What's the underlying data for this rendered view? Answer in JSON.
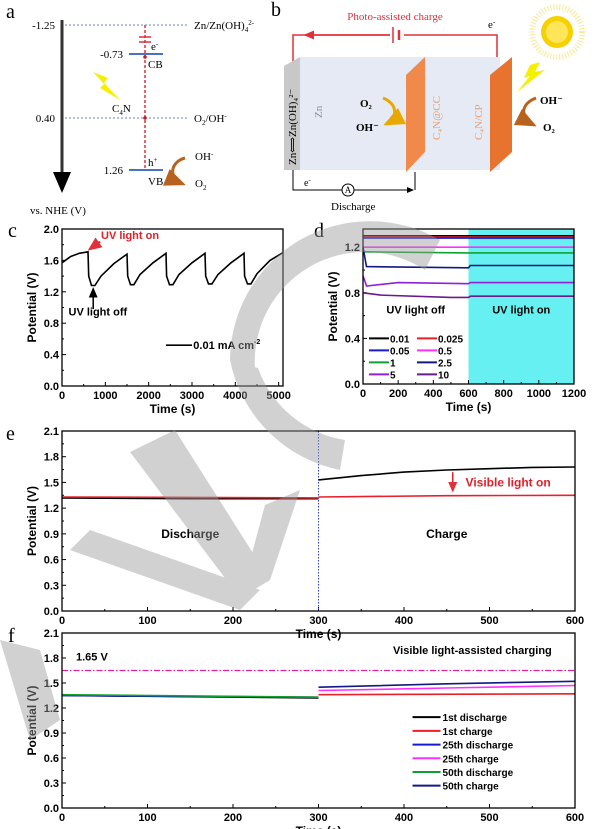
{
  "panel_labels": [
    "a",
    "b",
    "c",
    "d",
    "e",
    "f"
  ],
  "diagrams": {
    "a": {
      "axis_label": "vs. NHE (V)",
      "levels": [
        "-1.25",
        "-0.73",
        "0.40",
        "1.26"
      ],
      "couples": {
        "zn": "Zn/Zn(OH)",
        "zn_sub": "4",
        "zn_sup": "2-",
        "o2": "O",
        "o2_sub": "2",
        "o2_rest": "/OH",
        "o2_sup": "-"
      },
      "band_labels": {
        "cb": "CB",
        "vb": "VB",
        "electron": "e",
        "electron_sup": "-",
        "hole": "h",
        "hole_sup": "+"
      },
      "material": {
        "c": "C",
        "sub": "4",
        "n": "N"
      },
      "products": {
        "oh": "OH",
        "oh_sup": "-",
        "o2": "O",
        "o2_sub": "2"
      },
      "colors": {
        "band": "#4a72c4",
        "dashed": "#e0303a",
        "arrow": "#b8621f",
        "bolt": "#f5f000"
      }
    },
    "b": {
      "title": "Photo-assisted charge",
      "electron": "e",
      "electron_sup": "-",
      "zn_label": "Zn",
      "zn_couple": "Zn⟺Zn(OH)₄²⁻",
      "cathode_cc": "C₄N@CC",
      "cathode_cp": "C₄N/CP",
      "left_reaction": {
        "top": "O₂",
        "bottom": "OH⁻"
      },
      "right_reaction": {
        "top": "OH⁻",
        "bottom": "O₂"
      },
      "ammeter": "A",
      "discharge": "Discharge",
      "colors": {
        "wire_charge": "#e0303a",
        "electrolyte": "#e5eaf5",
        "plate": "#f0894a",
        "plate_dark": "#e8732e",
        "sun": "#f7d000"
      }
    }
  },
  "chart_data": [
    {
      "id": "c",
      "type": "line",
      "xlabel": "Time (s)",
      "ylabel": "Potential (V)",
      "xlim": [
        0,
        5100
      ],
      "ylim": [
        0,
        2.0
      ],
      "xticks": [
        "0",
        "1000",
        "2000",
        "3000",
        "4000",
        "5000"
      ],
      "yticks": [
        "0.0",
        "0.4",
        "0.8",
        "1.2",
        "1.6",
        "2.0"
      ],
      "grid": false,
      "legend": {
        "placement": "lower-right",
        "entries": [
          {
            "label": "0.01 mA cm",
            "sup": "-2",
            "color": "#000000"
          }
        ]
      },
      "annotations": [
        {
          "text": "UV light on",
          "color": "#e0202a"
        },
        {
          "text": "UV light off",
          "color": "#000000"
        }
      ],
      "series": [
        {
          "name": "0.01 mA cm-2",
          "color": "#000000",
          "points": [
            [
              0,
              1.57
            ],
            [
              200,
              1.65
            ],
            [
              400,
              1.69
            ],
            [
              600,
              1.71
            ],
            [
              615,
              1.4
            ],
            [
              680,
              1.28
            ],
            [
              760,
              1.28
            ],
            [
              900,
              1.4
            ],
            [
              1200,
              1.56
            ],
            [
              1500,
              1.68
            ],
            [
              1515,
              1.4
            ],
            [
              1580,
              1.29
            ],
            [
              1660,
              1.29
            ],
            [
              1800,
              1.42
            ],
            [
              2100,
              1.57
            ],
            [
              2400,
              1.69
            ],
            [
              2415,
              1.4
            ],
            [
              2480,
              1.29
            ],
            [
              2560,
              1.29
            ],
            [
              2700,
              1.42
            ],
            [
              3000,
              1.57
            ],
            [
              3300,
              1.69
            ],
            [
              3315,
              1.4
            ],
            [
              3380,
              1.3
            ],
            [
              3460,
              1.3
            ],
            [
              3600,
              1.42
            ],
            [
              3900,
              1.57
            ],
            [
              4200,
              1.69
            ],
            [
              4215,
              1.4
            ],
            [
              4280,
              1.3
            ],
            [
              4360,
              1.3
            ],
            [
              4500,
              1.43
            ],
            [
              4800,
              1.6
            ],
            [
              5100,
              1.7
            ]
          ]
        }
      ]
    },
    {
      "id": "d",
      "type": "line",
      "xlabel": "Time (s)",
      "ylabel": "Potential (V)",
      "xlim": [
        0,
        1200
      ],
      "ylim": [
        0,
        1.36
      ],
      "xticks": [
        "0",
        "200",
        "400",
        "600",
        "800",
        "1000",
        "1200"
      ],
      "yticks": [
        "0.0",
        "0.4",
        "0.8",
        "1.2"
      ],
      "grid": false,
      "shaded_region": {
        "x": [
          600,
          1200
        ],
        "color": "#66f0f2"
      },
      "annotations": [
        {
          "text": "UV light off"
        },
        {
          "text": "UV light on"
        }
      ],
      "legend": {
        "placement": "lower-left",
        "columns": 2
      },
      "series": [
        {
          "name": "0.01",
          "color": "#000000",
          "points": [
            [
              0,
              1.3
            ],
            [
              600,
              1.3
            ],
            [
              1200,
              1.3
            ]
          ]
        },
        {
          "name": "0.025",
          "color": "#e8202a",
          "points": [
            [
              0,
              1.29
            ],
            [
              600,
              1.29
            ],
            [
              1200,
              1.29
            ]
          ]
        },
        {
          "name": "0.05",
          "color": "#1a1ad0",
          "points": [
            [
              0,
              1.28
            ],
            [
              600,
              1.28
            ],
            [
              1200,
              1.28
            ]
          ]
        },
        {
          "name": "0.5",
          "color": "#ff30ff",
          "points": [
            [
              0,
              1.2
            ],
            [
              600,
              1.2
            ],
            [
              1200,
              1.2
            ]
          ]
        },
        {
          "name": "1",
          "color": "#10a030",
          "points": [
            [
              0,
              1.16
            ],
            [
              600,
              1.15
            ],
            [
              1200,
              1.15
            ]
          ]
        },
        {
          "name": "2.5",
          "color": "#101a80",
          "points": [
            [
              0,
              1.2
            ],
            [
              20,
              1.03
            ],
            [
              600,
              1.02
            ],
            [
              610,
              1.04
            ],
            [
              1200,
              1.04
            ]
          ]
        },
        {
          "name": "5",
          "color": "#9020d8",
          "points": [
            [
              0,
              0.95
            ],
            [
              20,
              0.86
            ],
            [
              200,
              0.89
            ],
            [
              600,
              0.88
            ],
            [
              610,
              0.89
            ],
            [
              1200,
              0.89
            ]
          ]
        },
        {
          "name": "10",
          "color": "#6a1a8a",
          "points": [
            [
              0,
              0.8
            ],
            [
              100,
              0.78
            ],
            [
              500,
              0.76
            ],
            [
              600,
              0.76
            ],
            [
              610,
              0.77
            ],
            [
              1200,
              0.77
            ]
          ]
        }
      ]
    },
    {
      "id": "e",
      "type": "line",
      "xlabel": "Time (s)",
      "ylabel": "Potential (V)",
      "xlim": [
        0,
        600
      ],
      "ylim": [
        0,
        2.1
      ],
      "xticks": [
        "0",
        "100",
        "200",
        "300",
        "400",
        "500",
        "600"
      ],
      "yticks": [
        "0.0",
        "0.3",
        "0.6",
        "0.9",
        "1.2",
        "1.5",
        "1.8",
        "2.1"
      ],
      "grid": false,
      "vline": {
        "x": 300,
        "color": "#3040d0"
      },
      "annotations": [
        {
          "text": "Discharge",
          "color": "#000000"
        },
        {
          "text": "Charge",
          "color": "#000000"
        },
        {
          "text": "Visible light on",
          "color": "#e0202a"
        }
      ],
      "series": [
        {
          "color": "#000000",
          "points": [
            [
              0,
              1.32
            ],
            [
              150,
              1.31
            ],
            [
              300,
              1.31
            ]
          ]
        },
        {
          "color": "#000000",
          "points": [
            [
              300,
              1.53
            ],
            [
              350,
              1.58
            ],
            [
              400,
              1.62
            ],
            [
              450,
              1.645
            ],
            [
              500,
              1.66
            ],
            [
              550,
              1.675
            ],
            [
              600,
              1.68
            ]
          ]
        },
        {
          "color": "#e8202a",
          "points": [
            [
              0,
              1.33
            ],
            [
              300,
              1.32
            ]
          ]
        },
        {
          "color": "#e8202a",
          "points": [
            [
              300,
              1.33
            ],
            [
              450,
              1.345
            ],
            [
              600,
              1.35
            ]
          ]
        }
      ]
    },
    {
      "id": "f",
      "type": "line",
      "xlabel": "Time (s)",
      "ylabel": "Potential (V)",
      "xlim": [
        0,
        600
      ],
      "ylim": [
        0,
        2.1
      ],
      "xticks": [
        "0",
        "100",
        "200",
        "300",
        "400",
        "500",
        "600"
      ],
      "yticks": [
        "0.0",
        "0.3",
        "0.6",
        "0.9",
        "1.2",
        "1.5",
        "1.8",
        "2.1"
      ],
      "grid": false,
      "hline": {
        "y": 1.65,
        "label": "1.65 V",
        "color": "#e020a0",
        "style": "dash-dot"
      },
      "annotations": [
        {
          "text": "Visible light-assisted charging",
          "color": "#000000"
        }
      ],
      "legend": {
        "placement": "lower-right"
      },
      "series": [
        {
          "name": "1st discharge",
          "color": "#000000",
          "points": [
            [
              0,
              1.35
            ],
            [
              300,
              1.32
            ]
          ]
        },
        {
          "name": "1st charge",
          "color": "#e8202a",
          "points": [
            [
              300,
              1.36
            ],
            [
              600,
              1.37
            ]
          ]
        },
        {
          "name": "25th discharge",
          "color": "#1a1ad0",
          "points": [
            [
              0,
              1.35
            ],
            [
              300,
              1.33
            ]
          ]
        },
        {
          "name": "25th charge",
          "color": "#ff30ff",
          "points": [
            [
              300,
              1.41
            ],
            [
              450,
              1.44
            ],
            [
              600,
              1.47
            ]
          ]
        },
        {
          "name": "50th discharge",
          "color": "#10a030",
          "points": [
            [
              0,
              1.36
            ],
            [
              300,
              1.33
            ]
          ]
        },
        {
          "name": "50th charge",
          "color": "#101a80",
          "points": [
            [
              300,
              1.45
            ],
            [
              450,
              1.49
            ],
            [
              600,
              1.52
            ]
          ]
        }
      ]
    }
  ]
}
